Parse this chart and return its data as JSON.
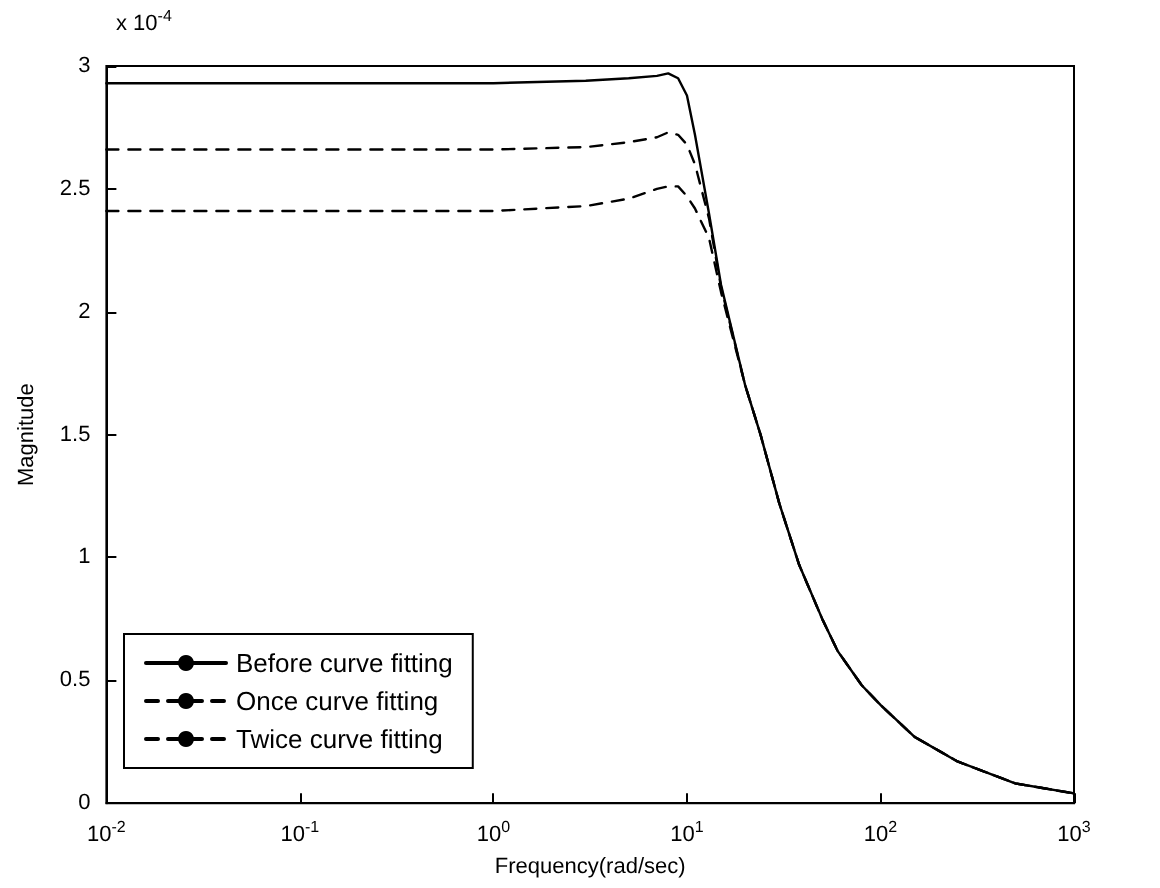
{
  "chart_data": {
    "type": "line",
    "xlabel": "Frequency(rad/sec)",
    "ylabel": "Magnitude",
    "annotations": [
      "x 10$^{-4}$"
    ],
    "log": "x",
    "xlim": [
      0.01,
      1000
    ],
    "xticks": [
      {
        "value": 0.01,
        "label": "10$^{-2}$"
      },
      {
        "value": 0.1,
        "label": "10$^{-1}$"
      },
      {
        "value": 1,
        "label": "10$^{0}$"
      },
      {
        "value": 10,
        "label": "10$^{1}$"
      },
      {
        "value": 100,
        "label": "10$^{2}$"
      },
      {
        "value": 1000,
        "label": "10$^{3}$"
      }
    ],
    "ylim": [
      0,
      3
    ],
    "yticks": [
      0,
      0.5,
      1,
      1.5,
      2,
      2.5,
      3
    ],
    "grid": false,
    "legend": "bottom left",
    "marker": "none",
    "series": [
      {
        "name": "Before curve fitting",
        "color": "#000000",
        "line_style": "solid",
        "x": [
          0.01,
          0.1,
          1,
          3,
          5,
          7,
          8,
          9,
          10,
          11,
          13,
          15,
          20,
          24,
          30,
          38,
          50,
          60,
          80,
          100,
          150,
          250,
          500,
          1000
        ],
        "values": [
          2.93,
          2.93,
          2.93,
          2.94,
          2.95,
          2.96,
          2.97,
          2.95,
          2.88,
          2.72,
          2.4,
          2.11,
          1.7,
          1.5,
          1.22,
          0.97,
          0.75,
          0.62,
          0.48,
          0.4,
          0.27,
          0.17,
          0.08,
          0.04
        ]
      },
      {
        "name": "Once curve fitting",
        "color": "#000000",
        "line_style": "dashed",
        "x": [
          0.01,
          0.1,
          1,
          3,
          5,
          7,
          8,
          9,
          10,
          11,
          13,
          15,
          20,
          24,
          30,
          38,
          50,
          60,
          80,
          100,
          150,
          250,
          500,
          1000
        ],
        "values": [
          2.66,
          2.66,
          2.66,
          2.67,
          2.69,
          2.71,
          2.73,
          2.72,
          2.68,
          2.6,
          2.38,
          2.1,
          1.7,
          1.5,
          1.22,
          0.97,
          0.75,
          0.62,
          0.48,
          0.4,
          0.27,
          0.17,
          0.08,
          0.04
        ]
      },
      {
        "name": "Twice curve fitting",
        "color": "#000000",
        "line_style": "dashed",
        "x": [
          0.01,
          0.1,
          1,
          3,
          5,
          7,
          8,
          9,
          10,
          11,
          13,
          15,
          20,
          24,
          30,
          38,
          50,
          60,
          80,
          100,
          150,
          250,
          500,
          1000
        ],
        "values": [
          2.41,
          2.41,
          2.41,
          2.43,
          2.46,
          2.5,
          2.51,
          2.51,
          2.47,
          2.42,
          2.3,
          2.08,
          1.7,
          1.5,
          1.22,
          0.97,
          0.75,
          0.62,
          0.48,
          0.4,
          0.27,
          0.17,
          0.08,
          0.04
        ]
      }
    ]
  }
}
